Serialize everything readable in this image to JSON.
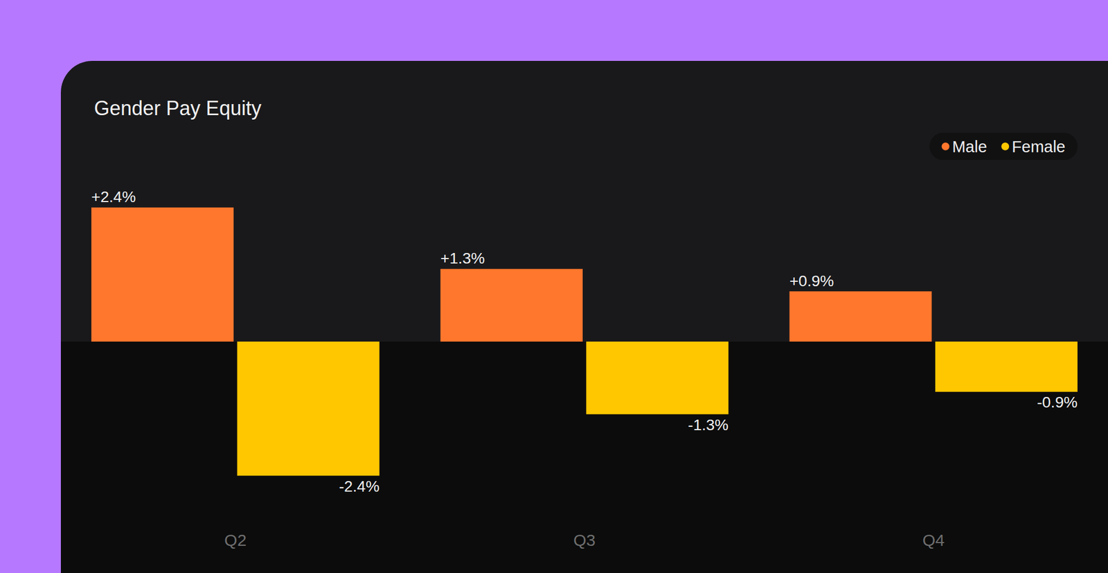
{
  "chart_data": {
    "type": "bar",
    "title": "Gender Pay Equity",
    "categories": [
      "Q2",
      "Q3",
      "Q4"
    ],
    "series": [
      {
        "name": "Male",
        "color": "#ff772d",
        "values": [
          2.4,
          1.3,
          0.9
        ],
        "value_labels": [
          "+2.4%",
          "+1.3%",
          "+0.9%"
        ]
      },
      {
        "name": "Female",
        "color": "#ffc700",
        "values": [
          -2.4,
          -1.3,
          -0.9
        ],
        "value_labels": [
          "-2.4%",
          "-1.3%",
          "-0.9%"
        ]
      }
    ],
    "ylim": [
      -3.2,
      3.2
    ],
    "grid": false,
    "legend": "upper right",
    "data_labels": true,
    "tick_labels": "x"
  }
}
